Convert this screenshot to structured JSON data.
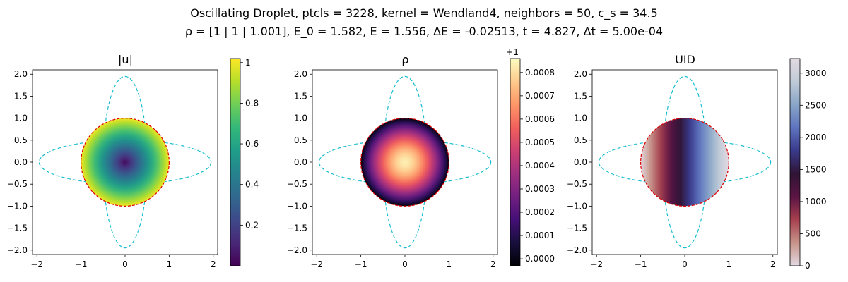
{
  "figure": {
    "title_line1": "Oscillating Droplet, ptcls = 3228, kernel = Wendland4, neighbors = 50, c_s = 34.5",
    "title_line2": "ρ = [1 | 1 | 1.001], E_0 = 1.582, E = 1.556, ΔE = -0.02513, t = 4.827, Δt = 5.00e-04"
  },
  "chart_data": [
    {
      "type": "scatter",
      "title": "|u|",
      "xlim": [
        -2.1,
        2.1
      ],
      "ylim": [
        -2.1,
        2.1
      ],
      "xticks": [
        -2,
        -1,
        0,
        1,
        2
      ],
      "yticks": [
        -2.0,
        -1.5,
        -1.0,
        -0.5,
        0.0,
        0.5,
        1.0,
        1.5,
        2.0
      ],
      "colormap": "viridis",
      "colorbar": {
        "min": 0.0,
        "max": 1.02,
        "ticks": [
          0.2,
          0.4,
          0.6,
          0.8,
          1.0
        ],
        "offset_label": ""
      },
      "field": "speed, 0 at centre rising radially to ~1.0 at droplet edge",
      "droplet": {
        "center": [
          0,
          0
        ],
        "radius": 1.0,
        "boundary_color": "#dd0000"
      },
      "reference_ellipses": [
        {
          "semi_x": 1.95,
          "semi_y": 0.5,
          "color": "#17becf"
        },
        {
          "semi_x": 0.5,
          "semi_y": 1.95,
          "color": "#17becf"
        }
      ]
    },
    {
      "type": "scatter",
      "title": "ρ",
      "xlim": [
        -2.1,
        2.1
      ],
      "ylim": [
        -2.1,
        2.1
      ],
      "xticks": [
        -2,
        -1,
        0,
        1,
        2
      ],
      "yticks": [
        -2.0,
        -1.5,
        -1.0,
        -0.5,
        0.0,
        0.5,
        1.0,
        1.5,
        2.0
      ],
      "colormap": "magma",
      "colorbar": {
        "min": -3e-05,
        "max": 0.00086,
        "ticks": [
          0.0,
          0.0001,
          0.0002,
          0.0003,
          0.0004,
          0.0005,
          0.0006,
          0.0007,
          0.0008
        ],
        "tick_labels": [
          "0.0000",
          "0.0001",
          "0.0002",
          "0.0003",
          "0.0004",
          "0.0005",
          "0.0006",
          "0.0007",
          "0.0008"
        ],
        "offset_label": "+1"
      },
      "field": "density excess, ~0.0008 at centre decreasing to 0 at droplet edge",
      "droplet": {
        "center": [
          0,
          0
        ],
        "radius": 1.0,
        "boundary_color": "#dd0000"
      },
      "reference_ellipses": [
        {
          "semi_x": 1.95,
          "semi_y": 0.5,
          "color": "#17becf"
        },
        {
          "semi_x": 0.5,
          "semi_y": 1.95,
          "color": "#17becf"
        }
      ]
    },
    {
      "type": "scatter",
      "title": "UID",
      "xlim": [
        -2.1,
        2.1
      ],
      "ylim": [
        -2.1,
        2.1
      ],
      "xticks": [
        -2,
        -1,
        0,
        1,
        2
      ],
      "yticks": [
        -2.0,
        -1.5,
        -1.0,
        -0.5,
        0.0,
        0.5,
        1.0,
        1.5,
        2.0
      ],
      "colormap": "twilight",
      "colorbar": {
        "min": 0,
        "max": 3228,
        "ticks": [
          0,
          500,
          1000,
          1500,
          2000,
          2500,
          3000
        ],
        "offset_label": ""
      },
      "field": "particle id, increasing left to right across droplet",
      "droplet": {
        "center": [
          0,
          0
        ],
        "radius": 1.0,
        "boundary_color": "#dd0000"
      },
      "reference_ellipses": [
        {
          "semi_x": 1.95,
          "semi_y": 0.5,
          "color": "#17becf"
        },
        {
          "semi_x": 0.5,
          "semi_y": 1.95,
          "color": "#17becf"
        }
      ]
    }
  ]
}
